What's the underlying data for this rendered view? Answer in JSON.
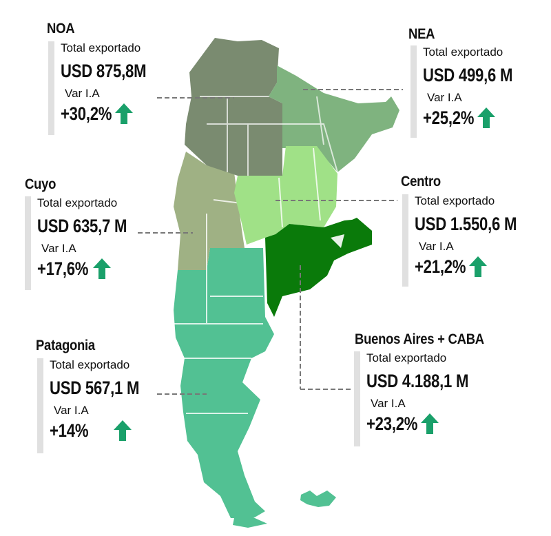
{
  "colors": {
    "noa": "#7a8b70",
    "noa_dark": "#6c7b63",
    "nea": "#7fb37f",
    "cuyo": "#9fb184",
    "centro": "#a0e187",
    "buenos_aires": "#0a7a0a",
    "patagonia": "#52c193",
    "arrow": "#1aa06a",
    "bar": "#e0e0e0"
  },
  "regions": [
    {
      "id": "noa",
      "name": "NOA",
      "label": "Total exportado",
      "amount": "USD 875,8M",
      "var_label": "Var I.A",
      "change": "+30,2%",
      "trend": "up"
    },
    {
      "id": "nea",
      "name": "NEA",
      "label": "Total exportado",
      "amount": "USD 499,6 M",
      "var_label": "Var I.A",
      "change": "+25,2%",
      "trend": "up"
    },
    {
      "id": "cuyo",
      "name": "Cuyo",
      "label": "Total exportado",
      "amount": "USD 635,7 M",
      "var_label": "Var I.A",
      "change": "+17,6%",
      "trend": "up"
    },
    {
      "id": "centro",
      "name": "Centro",
      "label": "Total exportado",
      "amount": "USD 1.550,6 M",
      "var_label": "Var I.A",
      "change": "+21,2%",
      "trend": "up"
    },
    {
      "id": "patagonia",
      "name": "Patagonia",
      "label": "Total exportado",
      "amount": "USD 567,1 M",
      "var_label": "Var I.A",
      "change": "+14%",
      "trend": "up"
    },
    {
      "id": "buenos-aires",
      "name": "Buenos Aires + CABA",
      "label": "Total exportado",
      "amount": "USD 4.188,1 M",
      "var_label": "Var I.A",
      "change": "+23,2%",
      "trend": "up"
    }
  ]
}
